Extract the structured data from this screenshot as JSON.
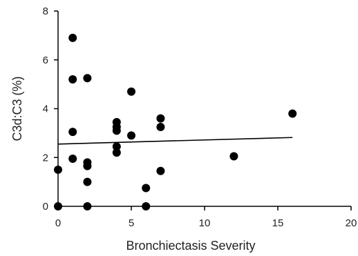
{
  "chart_data": {
    "type": "scatter",
    "xlabel": "Bronchiectasis Severity",
    "ylabel": "C3d:C3 (%)",
    "xlim": [
      0,
      20
    ],
    "ylim": [
      0,
      8
    ],
    "x_ticks": [
      0,
      5,
      10,
      15,
      20
    ],
    "y_ticks": [
      0,
      2,
      4,
      6,
      8
    ],
    "grid": false,
    "colors": {
      "points": "#000000",
      "trendline": "#000000",
      "axes": "#000000"
    },
    "points": [
      {
        "x": 0,
        "y": 0.0
      },
      {
        "x": 0,
        "y": 1.5
      },
      {
        "x": 1,
        "y": 6.9
      },
      {
        "x": 1,
        "y": 5.2
      },
      {
        "x": 1,
        "y": 3.05
      },
      {
        "x": 1,
        "y": 1.95
      },
      {
        "x": 2,
        "y": 5.25
      },
      {
        "x": 2,
        "y": 1.8
      },
      {
        "x": 2,
        "y": 1.65
      },
      {
        "x": 2,
        "y": 1.0
      },
      {
        "x": 2,
        "y": 0.0
      },
      {
        "x": 4,
        "y": 3.45
      },
      {
        "x": 4,
        "y": 3.25
      },
      {
        "x": 4,
        "y": 3.1
      },
      {
        "x": 4,
        "y": 2.45
      },
      {
        "x": 4,
        "y": 2.2
      },
      {
        "x": 5,
        "y": 4.7
      },
      {
        "x": 5,
        "y": 2.9
      },
      {
        "x": 6,
        "y": 0.75
      },
      {
        "x": 6,
        "y": 0.0
      },
      {
        "x": 7,
        "y": 3.6
      },
      {
        "x": 7,
        "y": 3.25
      },
      {
        "x": 7,
        "y": 1.45
      },
      {
        "x": 12,
        "y": 2.05
      },
      {
        "x": 16,
        "y": 3.8
      }
    ],
    "trendline": {
      "x": [
        0,
        16
      ],
      "y": [
        2.55,
        2.82
      ]
    }
  }
}
